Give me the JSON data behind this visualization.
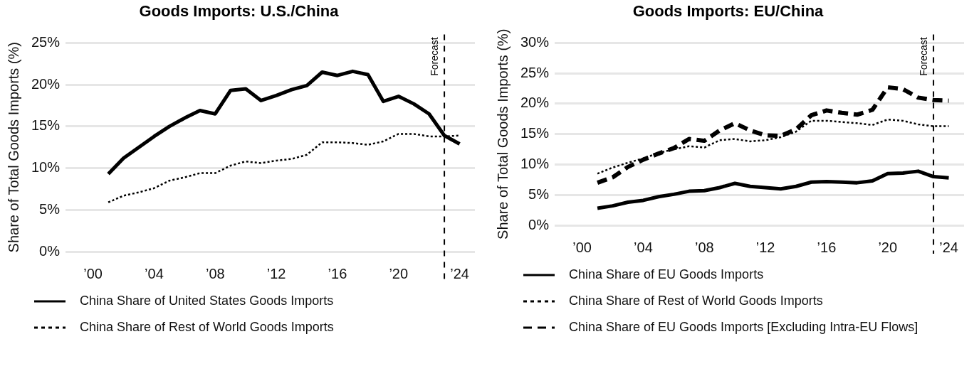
{
  "chart_data": [
    {
      "type": "line",
      "title": "Goods Imports: U.S./China",
      "ylabel": "Share of Total Goods Imports (%)",
      "x": [
        2001,
        2002,
        2003,
        2004,
        2005,
        2006,
        2007,
        2008,
        2009,
        2010,
        2011,
        2012,
        2013,
        2014,
        2015,
        2016,
        2017,
        2018,
        2019,
        2020,
        2021,
        2022,
        2023,
        2024
      ],
      "series": [
        {
          "name": "China Share of United States Goods Imports",
          "color": "#000000",
          "line_style": "solid",
          "values": [
            9.3,
            11.2,
            12.5,
            13.8,
            15.0,
            16.0,
            16.9,
            16.5,
            19.3,
            19.5,
            18.1,
            18.7,
            19.4,
            19.9,
            21.5,
            21.1,
            21.6,
            21.2,
            18.0,
            18.6,
            17.7,
            16.5,
            13.9,
            12.9
          ]
        },
        {
          "name": "China Share of Rest of World Goods Imports",
          "color": "#000000",
          "line_style": "dotted",
          "values": [
            5.9,
            6.7,
            7.1,
            7.6,
            8.5,
            8.9,
            9.4,
            9.4,
            10.3,
            10.8,
            10.6,
            10.9,
            11.1,
            11.6,
            13.1,
            13.1,
            13.0,
            12.8,
            13.2,
            14.1,
            14.1,
            13.8,
            13.8,
            13.9
          ]
        }
      ],
      "xlim": [
        1998.2,
        2025
      ],
      "xticks": [
        {
          "value": 2000,
          "label": "’00"
        },
        {
          "value": 2004,
          "label": "’04"
        },
        {
          "value": 2008,
          "label": "’08"
        },
        {
          "value": 2012,
          "label": "’12"
        },
        {
          "value": 2016,
          "label": "’16"
        },
        {
          "value": 2020,
          "label": "’20"
        },
        {
          "value": 2024,
          "label": "’24"
        }
      ],
      "ylim": [
        0,
        25
      ],
      "yticks": [
        {
          "value": 0,
          "label": "0%"
        },
        {
          "value": 5,
          "label": "5%"
        },
        {
          "value": 10,
          "label": "10%"
        },
        {
          "value": 15,
          "label": "15%"
        },
        {
          "value": 20,
          "label": "20%"
        },
        {
          "value": 25,
          "label": "25%"
        }
      ],
      "grid": "y",
      "legend": "bottom",
      "marker": "none",
      "ref_lines": [
        {
          "axis": "x",
          "value": 2023,
          "label": "Forecast",
          "line_style": "dashed"
        }
      ]
    },
    {
      "type": "line",
      "title": "Goods Imports: EU/China",
      "ylabel": "Share of Total Goods Imports (%)",
      "x": [
        2001,
        2002,
        2003,
        2004,
        2005,
        2006,
        2007,
        2008,
        2009,
        2010,
        2011,
        2012,
        2013,
        2014,
        2015,
        2016,
        2017,
        2018,
        2019,
        2020,
        2021,
        2022,
        2023,
        2024
      ],
      "series": [
        {
          "name": "China Share of EU Goods Imports",
          "color": "#000000",
          "line_style": "solid",
          "values": [
            2.8,
            3.2,
            3.8,
            4.1,
            4.7,
            5.1,
            5.6,
            5.7,
            6.2,
            6.9,
            6.4,
            6.2,
            6.0,
            6.4,
            7.1,
            7.2,
            7.1,
            7.0,
            7.3,
            8.5,
            8.6,
            8.9,
            8.0,
            7.8
          ]
        },
        {
          "name": "China Share of Rest of World Goods Imports",
          "color": "#000000",
          "line_style": "dotted",
          "values": [
            8.5,
            9.5,
            10.3,
            11.0,
            11.9,
            12.5,
            13.0,
            12.8,
            14.0,
            14.2,
            13.8,
            14.0,
            14.5,
            15.4,
            17.2,
            17.2,
            17.0,
            16.8,
            16.5,
            17.4,
            17.2,
            16.6,
            16.3,
            16.3
          ]
        },
        {
          "name": "China Share of EU Goods Imports [Excluding Intra-EU Flows]",
          "color": "#000000",
          "line_style": "dashed",
          "values": [
            7.0,
            7.9,
            9.6,
            10.8,
            11.8,
            12.7,
            14.2,
            13.9,
            15.6,
            16.8,
            15.6,
            14.8,
            14.7,
            15.8,
            18.1,
            18.9,
            18.5,
            18.2,
            19.0,
            22.7,
            22.4,
            21.0,
            20.6,
            20.5
          ]
        }
      ],
      "xlim": [
        1998.2,
        2025
      ],
      "xticks": [
        {
          "value": 2000,
          "label": "’00"
        },
        {
          "value": 2004,
          "label": "’04"
        },
        {
          "value": 2008,
          "label": "’08"
        },
        {
          "value": 2012,
          "label": "’12"
        },
        {
          "value": 2016,
          "label": "’16"
        },
        {
          "value": 2020,
          "label": "’20"
        },
        {
          "value": 2024,
          "label": "’24"
        }
      ],
      "ylim": [
        0,
        30
      ],
      "yticks": [
        {
          "value": 0,
          "label": "0%"
        },
        {
          "value": 5,
          "label": "5%"
        },
        {
          "value": 10,
          "label": "10%"
        },
        {
          "value": 15,
          "label": "15%"
        },
        {
          "value": 20,
          "label": "20%"
        },
        {
          "value": 25,
          "label": "25%"
        },
        {
          "value": 30,
          "label": "30%"
        }
      ],
      "grid": "y",
      "legend": "bottom",
      "marker": "none",
      "ref_lines": [
        {
          "axis": "x",
          "value": 2023,
          "label": "Forecast",
          "line_style": "dashed"
        }
      ]
    }
  ]
}
